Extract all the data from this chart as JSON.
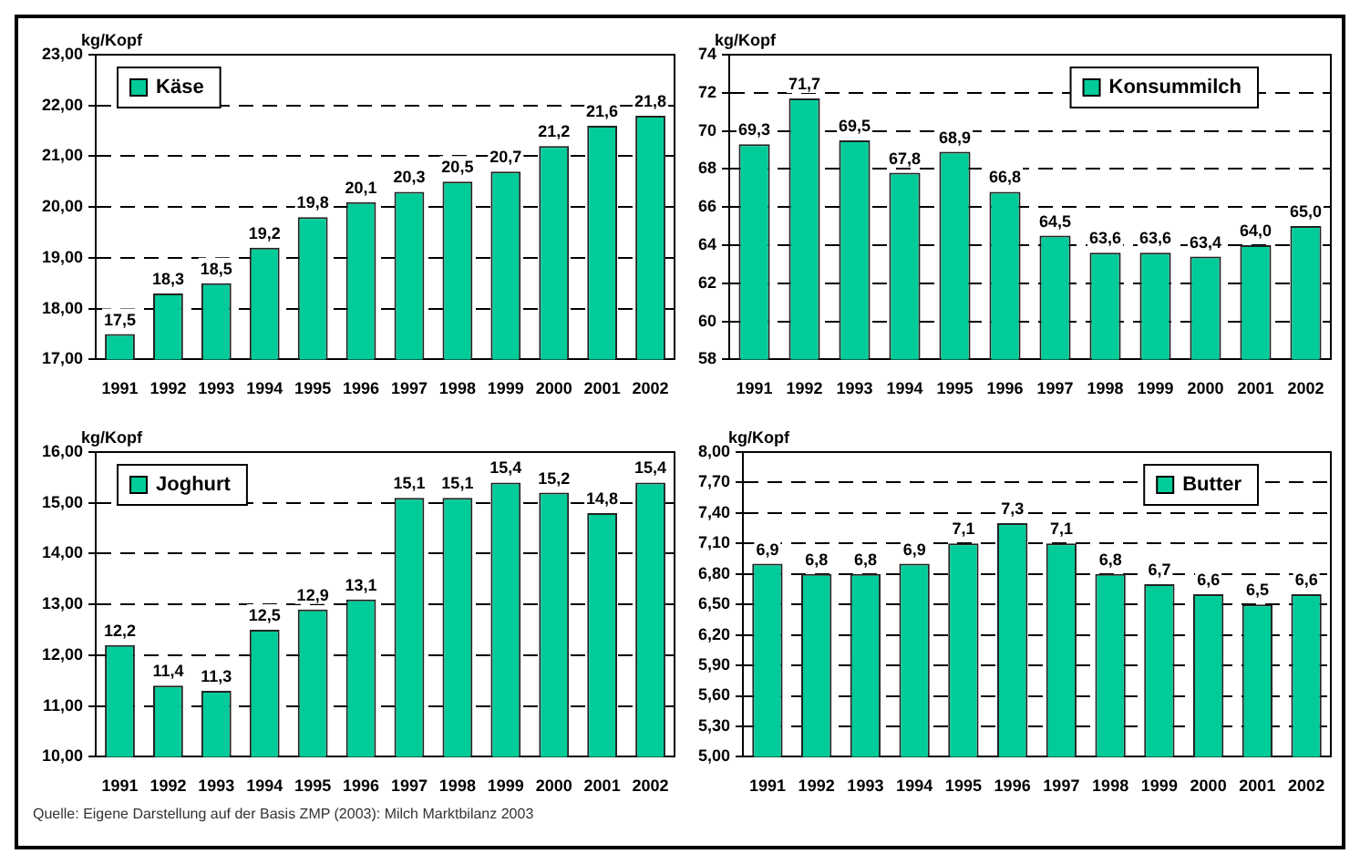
{
  "chart_data": [
    {
      "type": "bar",
      "ylabel": "kg/Kopf",
      "categories": [
        "1991",
        "1992",
        "1993",
        "1994",
        "1995",
        "1996",
        "1997",
        "1998",
        "1999",
        "2000",
        "2001",
        "2002"
      ],
      "series": [
        {
          "name": "Käse",
          "color": "#00cc99",
          "values": [
            17.5,
            18.3,
            18.5,
            19.2,
            19.8,
            20.1,
            20.3,
            20.5,
            20.7,
            21.2,
            21.6,
            21.8
          ],
          "value_labels": [
            "17,5",
            "18,3",
            "18,5",
            "19,2",
            "19,8",
            "20,1",
            "20,3",
            "20,5",
            "20,7",
            "21,2",
            "21,6",
            "21,8"
          ]
        }
      ],
      "ylim": [
        17,
        23
      ],
      "yticks": [
        {
          "value": 17,
          "label": "17,00"
        },
        {
          "value": 18,
          "label": "18,00"
        },
        {
          "value": 19,
          "label": "19,00"
        },
        {
          "value": 20,
          "label": "20,00"
        },
        {
          "value": 21,
          "label": "21,00"
        },
        {
          "value": 22,
          "label": "22,00"
        },
        {
          "value": 23,
          "label": "23,00"
        }
      ],
      "grid": "y",
      "legend": "top left"
    },
    {
      "type": "bar",
      "ylabel": "kg/Kopf",
      "categories": [
        "1991",
        "1992",
        "1993",
        "1994",
        "1995",
        "1996",
        "1997",
        "1998",
        "1999",
        "2000",
        "2001",
        "2002"
      ],
      "series": [
        {
          "name": "Konsummilch",
          "color": "#00cc99",
          "values": [
            69.3,
            71.7,
            69.5,
            67.8,
            68.9,
            66.8,
            64.5,
            63.6,
            63.6,
            63.4,
            64.0,
            65.0
          ],
          "value_labels": [
            "69,3",
            "71,7",
            "69,5",
            "67,8",
            "68,9",
            "66,8",
            "64,5",
            "63,6",
            "63,6",
            "63,4",
            "64,0",
            "65,0"
          ]
        }
      ],
      "ylim": [
        58,
        74
      ],
      "yticks": [
        58,
        60,
        62,
        64,
        66,
        68,
        70,
        72,
        74
      ],
      "grid": "y",
      "legend": "top right"
    },
    {
      "type": "bar",
      "ylabel": "kg/Kopf",
      "categories": [
        "1991",
        "1992",
        "1993",
        "1994",
        "1995",
        "1996",
        "1997",
        "1998",
        "1999",
        "2000",
        "2001",
        "2002"
      ],
      "series": [
        {
          "name": "Joghurt",
          "color": "#00cc99",
          "values": [
            12.2,
            11.4,
            11.3,
            12.5,
            12.9,
            13.1,
            15.1,
            15.1,
            15.4,
            15.2,
            14.8,
            15.4
          ],
          "value_labels": [
            "12,2",
            "11,4",
            "11,3",
            "12,5",
            "12,9",
            "13,1",
            "15,1",
            "15,1",
            "15,4",
            "15,2",
            "14,8",
            "15,4"
          ]
        }
      ],
      "ylim": [
        10,
        16
      ],
      "yticks": [
        {
          "value": 10,
          "label": "10,00"
        },
        {
          "value": 11,
          "label": "11,00"
        },
        {
          "value": 12,
          "label": "12,00"
        },
        {
          "value": 13,
          "label": "13,00"
        },
        {
          "value": 14,
          "label": "14,00"
        },
        {
          "value": 15,
          "label": "15,00"
        },
        {
          "value": 16,
          "label": "16,00"
        }
      ],
      "grid": "y",
      "legend": "top left",
      "annotations": [
        "Quelle: Eigene Darstellung auf der Basis ZMP (2003): Milch Marktbilanz 2003"
      ]
    },
    {
      "type": "bar",
      "ylabel": "kg/Kopf",
      "categories": [
        "1991",
        "1992",
        "1993",
        "1994",
        "1995",
        "1996",
        "1997",
        "1998",
        "1999",
        "2000",
        "2001",
        "2002"
      ],
      "series": [
        {
          "name": "Butter",
          "color": "#00cc99",
          "values": [
            6.9,
            6.8,
            6.8,
            6.9,
            7.1,
            7.3,
            7.1,
            6.8,
            6.7,
            6.6,
            6.5,
            6.6
          ],
          "value_labels": [
            "6,9",
            "6,8",
            "6,8",
            "6,9",
            "7,1",
            "7,3",
            "7,1",
            "6,8",
            "6,7",
            "6,6",
            "6,5",
            "6,6"
          ]
        }
      ],
      "ylim": [
        5,
        8
      ],
      "yticks": [
        {
          "value": 5,
          "label": "5,00"
        },
        {
          "value": 5.3,
          "label": "5,30"
        },
        {
          "value": 5.6,
          "label": "5,60"
        },
        {
          "value": 5.9,
          "label": "5,90"
        },
        {
          "value": 6.2,
          "label": "6,20"
        },
        {
          "value": 6.5,
          "label": "6,50"
        },
        {
          "value": 6.8,
          "label": "6,80"
        },
        {
          "value": 7.1,
          "label": "7,10"
        },
        {
          "value": 7.4,
          "label": "7,40"
        },
        {
          "value": 7.7,
          "label": "7,70"
        },
        {
          "value": 8,
          "label": "8,00"
        }
      ],
      "grid": "y",
      "legend": "top right"
    }
  ]
}
